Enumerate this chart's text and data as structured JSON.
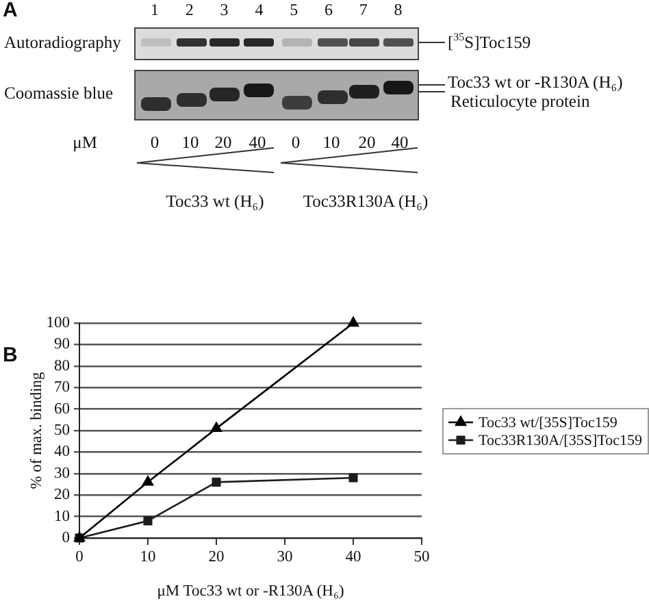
{
  "chart_data": [
    {
      "type": "other",
      "title": "A",
      "annotations": [
        "1 2 3 4 5 6 7 8",
        "Autoradiography",
        "Coomassie blue",
        "[$^{35}$S]Toc159",
        "Toc33 wt or -R130A (H₆)",
        "Reticulocyte protein",
        "μM",
        "0",
        "10",
        "20",
        "40",
        "0",
        "10",
        "20",
        "40",
        "Toc33 wt (H₆)",
        "Toc33R130A (H₆)"
      ]
    },
    {
      "type": "line",
      "title": "B",
      "x": [
        0,
        10,
        20,
        40
      ],
      "series": [
        {
          "name": "Toc33 wt/[35S]Toc159",
          "color": "#000000",
          "marker": "triangle",
          "values": [
            0,
            26,
            51,
            100
          ]
        },
        {
          "name": "Toc33R130A/[35S]Toc159",
          "color": "#1c1c1c",
          "marker": "square",
          "values": [
            0,
            8,
            26,
            28
          ]
        }
      ],
      "xlabel": "μM Toc33 wt or -R130A (H₆)",
      "ylabel": "% of max. binding",
      "xlim": [
        0,
        50
      ],
      "xticks": [
        0,
        10,
        20,
        30,
        40,
        50
      ],
      "ylim": [
        0,
        100
      ],
      "yticks": [
        0,
        10,
        20,
        30,
        40,
        50,
        60,
        70,
        80,
        90,
        100
      ],
      "grid": "y",
      "legend": "right"
    }
  ]
}
